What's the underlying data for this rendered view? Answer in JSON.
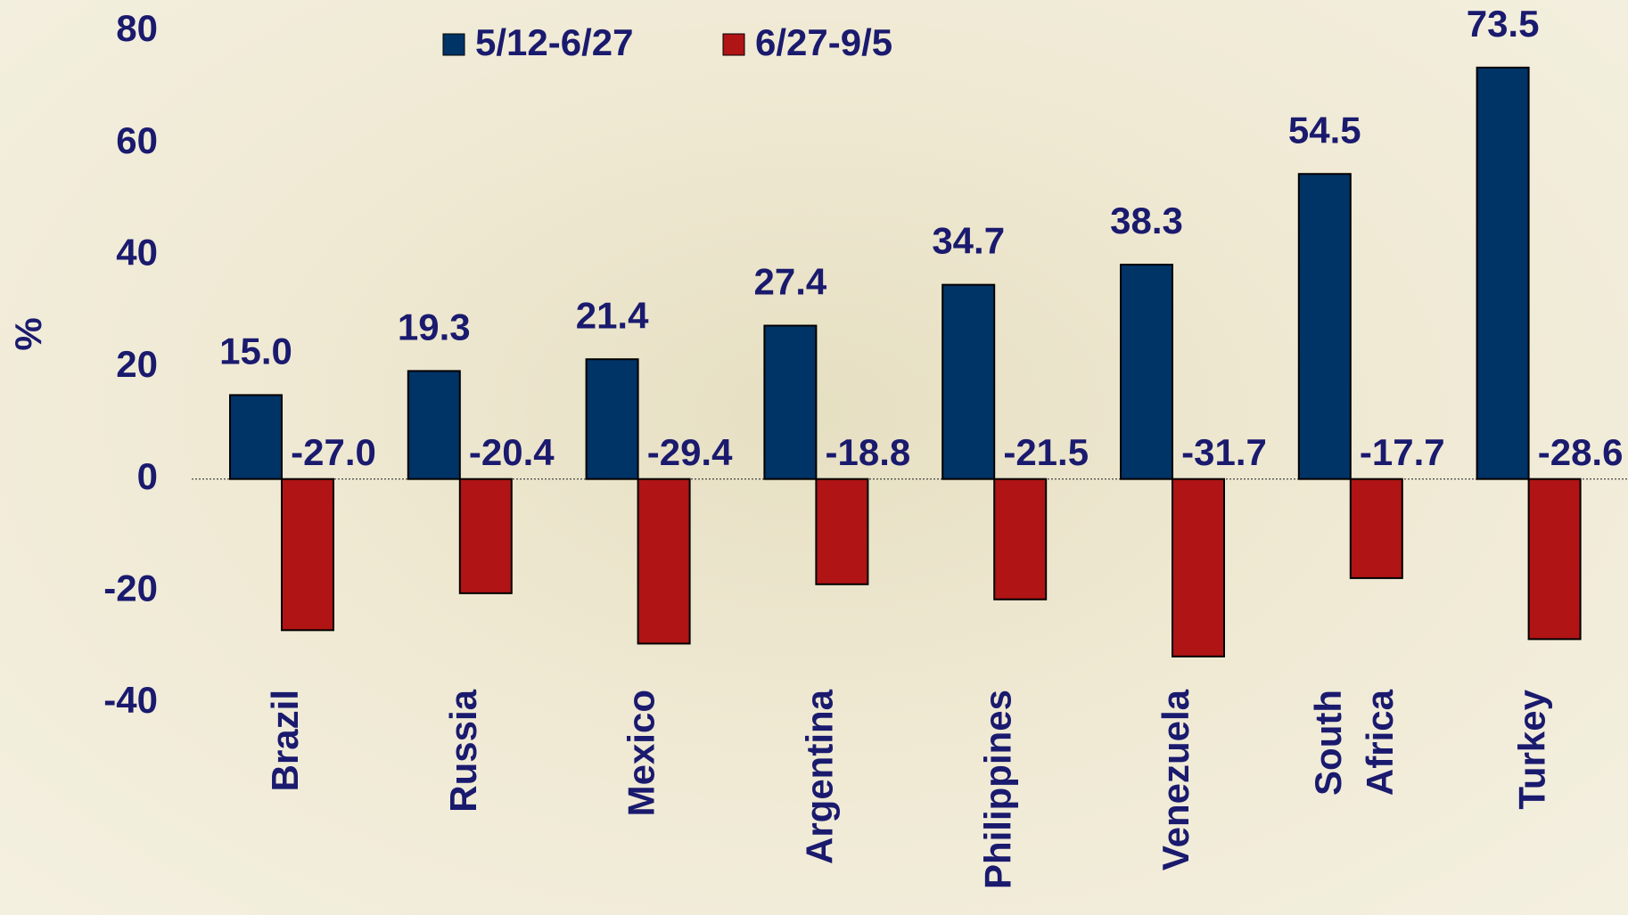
{
  "chart_data": {
    "type": "bar",
    "y_label": "%",
    "categories": [
      "Brazil",
      "Russia",
      "Mexico",
      "Argentina",
      "Philippines",
      "Venezuela",
      "South Africa",
      "Turkey"
    ],
    "series": [
      {
        "name": "5/12-6/27",
        "color": "#003366",
        "values": [
          15.0,
          19.3,
          21.4,
          27.4,
          34.7,
          38.3,
          54.5,
          73.5
        ],
        "value_labels": [
          "15.0",
          "19.3",
          "21.4",
          "27.4",
          "34.7",
          "38.3",
          "54.5",
          "73.5"
        ]
      },
      {
        "name": "6/27-9/5",
        "color": "#b01414",
        "values": [
          -27.0,
          -20.4,
          -29.4,
          -18.8,
          -21.5,
          -31.7,
          -17.7,
          -28.6
        ],
        "value_labels": [
          "-27.0",
          "-20.4",
          "-29.4",
          "-18.8",
          "-21.5",
          "-31.7",
          "-17.7",
          "-28.6"
        ]
      }
    ],
    "ylim": [
      -40,
      80
    ],
    "yticks": [
      -40,
      -20,
      0,
      20,
      40,
      60,
      80
    ]
  }
}
